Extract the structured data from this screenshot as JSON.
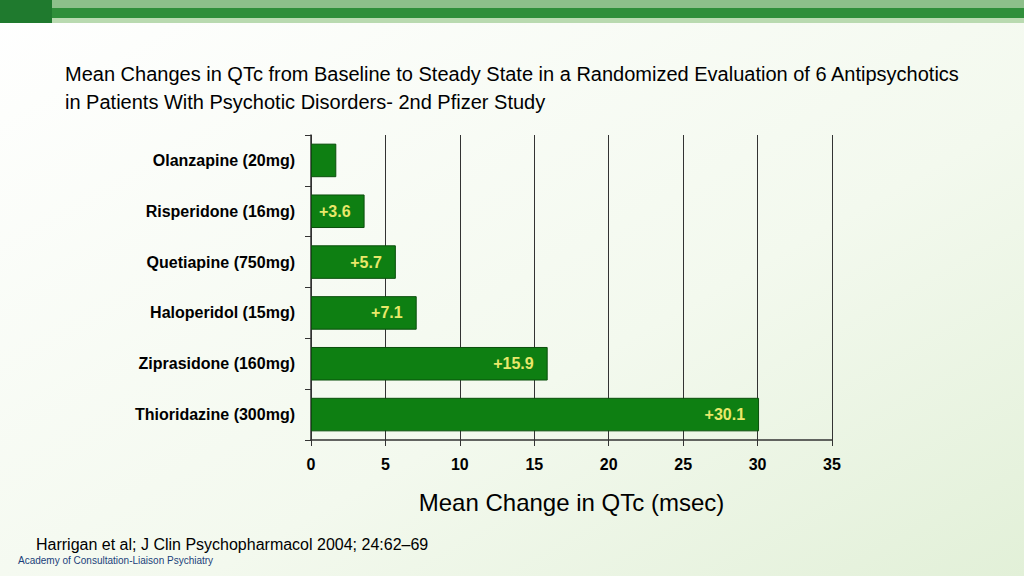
{
  "chart_data": {
    "type": "bar",
    "orientation": "horizontal",
    "title": "Mean Changes in QTc from Baseline to Steady State in a Randomized Evaluation of 6 Antipsychotics in Patients With Psychotic Disorders- 2nd Pfizer Study",
    "categories": [
      "Olanzapine (20mg)",
      "Risperidone (16mg)",
      "Quetiapine (750mg)",
      "Haloperidol (15mg)",
      "Ziprasidone (160mg)",
      "Thioridazine (300mg)"
    ],
    "values": [
      1.7,
      3.6,
      5.7,
      7.1,
      15.9,
      30.1
    ],
    "value_labels": [
      null,
      "+3.6",
      "+5.7",
      "+7.1",
      "+15.9",
      "+30.1"
    ],
    "data_labels": true,
    "color": "#0e7f12",
    "x_label": "Mean Change in QTc (msec)",
    "xlim": [
      0,
      35
    ],
    "xticks": [
      0,
      5,
      10,
      15,
      20,
      25,
      30,
      35
    ],
    "grid": true,
    "annotations": [
      "Harrigan et al; J Clin Psychopharmacol 2004; 24:62–69",
      "Academy of Consultation-Liaison Psychiatry"
    ]
  }
}
